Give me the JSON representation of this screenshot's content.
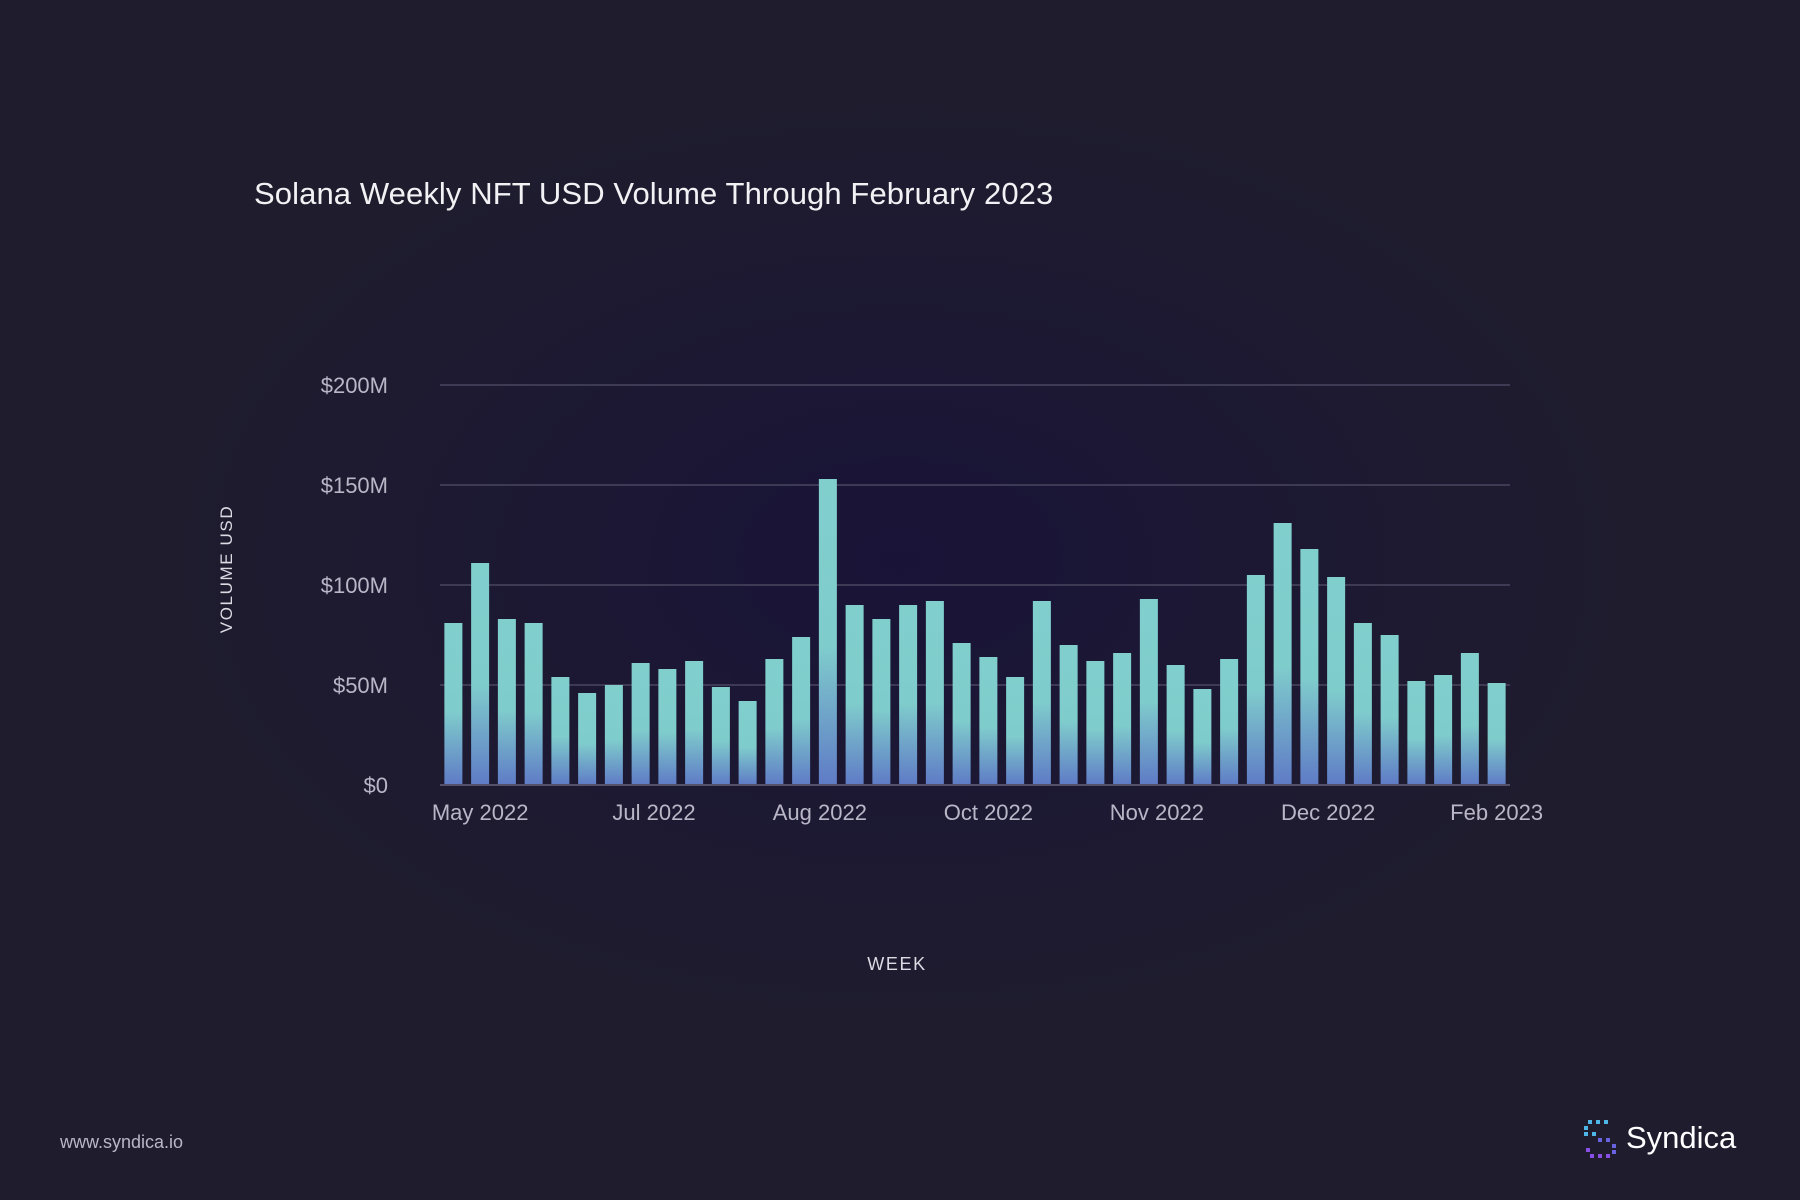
{
  "chart_data": {
    "type": "bar",
    "title": "Solana Weekly NFT USD Volume Through February 2023",
    "xlabel": "WEEK",
    "ylabel": "VOLUME USD",
    "ylim": [
      0,
      200
    ],
    "y_ticks": [
      {
        "value": 0,
        "label": "$0"
      },
      {
        "value": 50,
        "label": "$50M"
      },
      {
        "value": 100,
        "label": "$100M"
      },
      {
        "value": 150,
        "label": "$150M"
      },
      {
        "value": 200,
        "label": "$200M"
      }
    ],
    "x_tick_labels": [
      {
        "index": 1,
        "label": "May 2022"
      },
      {
        "index": 7.5,
        "label": "Jul 2022"
      },
      {
        "index": 13.7,
        "label": "Aug 2022"
      },
      {
        "index": 20,
        "label": "Oct 2022"
      },
      {
        "index": 26.3,
        "label": "Nov 2022"
      },
      {
        "index": 32.7,
        "label": "Dec 2022"
      },
      {
        "index": 39,
        "label": "Feb 2023"
      }
    ],
    "values": [
      81,
      111,
      83,
      81,
      54,
      46,
      50,
      61,
      58,
      62,
      49,
      42,
      63,
      74,
      153,
      90,
      83,
      90,
      92,
      71,
      64,
      54,
      92,
      70,
      62,
      66,
      93,
      60,
      48,
      63,
      105,
      131,
      118,
      104,
      81,
      75,
      52,
      55,
      66,
      51
    ],
    "grid": true,
    "legend": "none",
    "colors": {
      "bar_top": "#80cfcd",
      "bar_bottom": "#5f7bc6",
      "gridline": "#4a4660",
      "tick_label": "#b9b7c7"
    }
  },
  "footer": {
    "url": "www.syndica.io",
    "brand": "Syndica"
  }
}
